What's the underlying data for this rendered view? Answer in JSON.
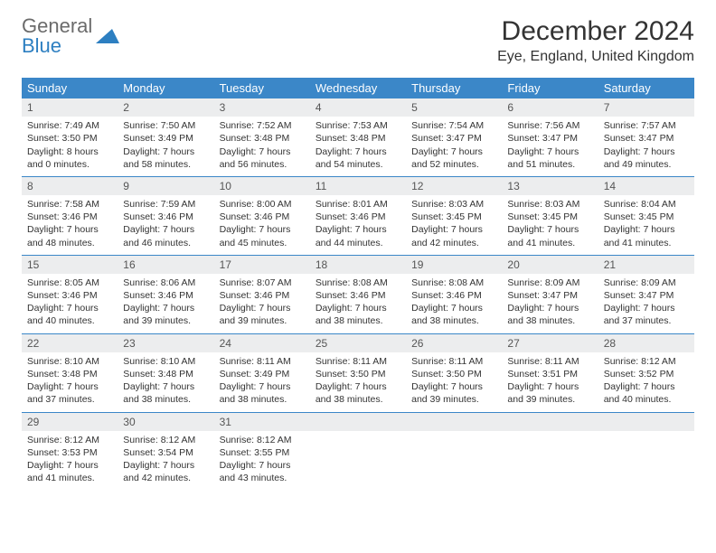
{
  "logo": {
    "line1": "General",
    "line2": "Blue"
  },
  "title": "December 2024",
  "location": "Eye, England, United Kingdom",
  "dayNames": [
    "Sunday",
    "Monday",
    "Tuesday",
    "Wednesday",
    "Thursday",
    "Friday",
    "Saturday"
  ],
  "colors": {
    "headerBar": "#3b87c8",
    "dayNumBg": "#ecedee",
    "weekBorder": "#3b87c8",
    "logoGray": "#6b6b6b",
    "logoBlue": "#2d7fc1"
  },
  "weeks": [
    [
      {
        "n": "1",
        "sunrise": "7:49 AM",
        "sunset": "3:50 PM",
        "daylight": "8 hours and 0 minutes."
      },
      {
        "n": "2",
        "sunrise": "7:50 AM",
        "sunset": "3:49 PM",
        "daylight": "7 hours and 58 minutes."
      },
      {
        "n": "3",
        "sunrise": "7:52 AM",
        "sunset": "3:48 PM",
        "daylight": "7 hours and 56 minutes."
      },
      {
        "n": "4",
        "sunrise": "7:53 AM",
        "sunset": "3:48 PM",
        "daylight": "7 hours and 54 minutes."
      },
      {
        "n": "5",
        "sunrise": "7:54 AM",
        "sunset": "3:47 PM",
        "daylight": "7 hours and 52 minutes."
      },
      {
        "n": "6",
        "sunrise": "7:56 AM",
        "sunset": "3:47 PM",
        "daylight": "7 hours and 51 minutes."
      },
      {
        "n": "7",
        "sunrise": "7:57 AM",
        "sunset": "3:47 PM",
        "daylight": "7 hours and 49 minutes."
      }
    ],
    [
      {
        "n": "8",
        "sunrise": "7:58 AM",
        "sunset": "3:46 PM",
        "daylight": "7 hours and 48 minutes."
      },
      {
        "n": "9",
        "sunrise": "7:59 AM",
        "sunset": "3:46 PM",
        "daylight": "7 hours and 46 minutes."
      },
      {
        "n": "10",
        "sunrise": "8:00 AM",
        "sunset": "3:46 PM",
        "daylight": "7 hours and 45 minutes."
      },
      {
        "n": "11",
        "sunrise": "8:01 AM",
        "sunset": "3:46 PM",
        "daylight": "7 hours and 44 minutes."
      },
      {
        "n": "12",
        "sunrise": "8:03 AM",
        "sunset": "3:45 PM",
        "daylight": "7 hours and 42 minutes."
      },
      {
        "n": "13",
        "sunrise": "8:03 AM",
        "sunset": "3:45 PM",
        "daylight": "7 hours and 41 minutes."
      },
      {
        "n": "14",
        "sunrise": "8:04 AM",
        "sunset": "3:45 PM",
        "daylight": "7 hours and 41 minutes."
      }
    ],
    [
      {
        "n": "15",
        "sunrise": "8:05 AM",
        "sunset": "3:46 PM",
        "daylight": "7 hours and 40 minutes."
      },
      {
        "n": "16",
        "sunrise": "8:06 AM",
        "sunset": "3:46 PM",
        "daylight": "7 hours and 39 minutes."
      },
      {
        "n": "17",
        "sunrise": "8:07 AM",
        "sunset": "3:46 PM",
        "daylight": "7 hours and 39 minutes."
      },
      {
        "n": "18",
        "sunrise": "8:08 AM",
        "sunset": "3:46 PM",
        "daylight": "7 hours and 38 minutes."
      },
      {
        "n": "19",
        "sunrise": "8:08 AM",
        "sunset": "3:46 PM",
        "daylight": "7 hours and 38 minutes."
      },
      {
        "n": "20",
        "sunrise": "8:09 AM",
        "sunset": "3:47 PM",
        "daylight": "7 hours and 38 minutes."
      },
      {
        "n": "21",
        "sunrise": "8:09 AM",
        "sunset": "3:47 PM",
        "daylight": "7 hours and 37 minutes."
      }
    ],
    [
      {
        "n": "22",
        "sunrise": "8:10 AM",
        "sunset": "3:48 PM",
        "daylight": "7 hours and 37 minutes."
      },
      {
        "n": "23",
        "sunrise": "8:10 AM",
        "sunset": "3:48 PM",
        "daylight": "7 hours and 38 minutes."
      },
      {
        "n": "24",
        "sunrise": "8:11 AM",
        "sunset": "3:49 PM",
        "daylight": "7 hours and 38 minutes."
      },
      {
        "n": "25",
        "sunrise": "8:11 AM",
        "sunset": "3:50 PM",
        "daylight": "7 hours and 38 minutes."
      },
      {
        "n": "26",
        "sunrise": "8:11 AM",
        "sunset": "3:50 PM",
        "daylight": "7 hours and 39 minutes."
      },
      {
        "n": "27",
        "sunrise": "8:11 AM",
        "sunset": "3:51 PM",
        "daylight": "7 hours and 39 minutes."
      },
      {
        "n": "28",
        "sunrise": "8:12 AM",
        "sunset": "3:52 PM",
        "daylight": "7 hours and 40 minutes."
      }
    ],
    [
      {
        "n": "29",
        "sunrise": "8:12 AM",
        "sunset": "3:53 PM",
        "daylight": "7 hours and 41 minutes."
      },
      {
        "n": "30",
        "sunrise": "8:12 AM",
        "sunset": "3:54 PM",
        "daylight": "7 hours and 42 minutes."
      },
      {
        "n": "31",
        "sunrise": "8:12 AM",
        "sunset": "3:55 PM",
        "daylight": "7 hours and 43 minutes."
      },
      {
        "empty": true
      },
      {
        "empty": true
      },
      {
        "empty": true
      },
      {
        "empty": true
      }
    ]
  ],
  "labels": {
    "sunrise": "Sunrise:",
    "sunset": "Sunset:",
    "daylight": "Daylight:"
  }
}
